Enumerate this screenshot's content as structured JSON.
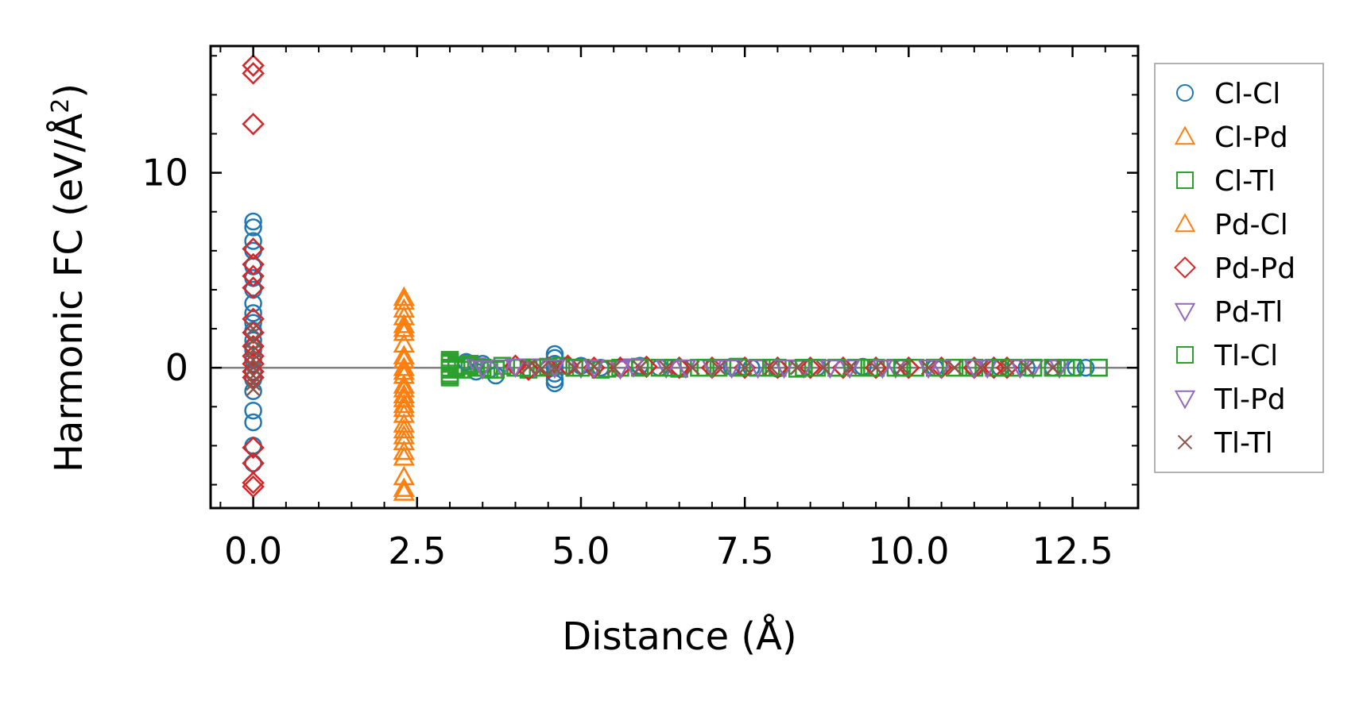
{
  "chart_data": {
    "type": "scatter",
    "title": "",
    "xlabel": "Distance (Å)",
    "ylabel_main": "Harmonic FC (eV/Å",
    "ylabel_sup": "2",
    "ylabel_close": ")",
    "xlim": [
      -0.65,
      13.5
    ],
    "ylim": [
      -7.2,
      16.5
    ],
    "xticks": [
      {
        "value": 0.0,
        "label": "0.0"
      },
      {
        "value": 2.5,
        "label": "2.5"
      },
      {
        "value": 5.0,
        "label": "5.0"
      },
      {
        "value": 7.5,
        "label": "7.5"
      },
      {
        "value": 10.0,
        "label": "10.0"
      },
      {
        "value": 12.5,
        "label": "12.5"
      }
    ],
    "yticks": [
      {
        "value": 0,
        "label": "0"
      },
      {
        "value": 10,
        "label": "10"
      }
    ],
    "x_minor_step": 0.5,
    "y_minor_step": 2,
    "zero_line": true,
    "legend_position": "outside-right",
    "series": [
      {
        "name": "Cl-Cl",
        "marker": "circle",
        "color": "#1f77b4",
        "fill": "none",
        "x": [
          0,
          0,
          0,
          0,
          0,
          0,
          0,
          0,
          0,
          0,
          0,
          0,
          0,
          0,
          0,
          0,
          0,
          0,
          0,
          0,
          0,
          0,
          3.25,
          3.3,
          3.4,
          3.5,
          3.6,
          3.7,
          4.6,
          4.6,
          4.6,
          4.6,
          4.6,
          4.6,
          4.6,
          5.0,
          5.3,
          5.9,
          6.2,
          6.5,
          7.3,
          7.6,
          8.0,
          8.6,
          9.3,
          9.9,
          10.4,
          11.0,
          11.4,
          11.8,
          12.2,
          12.55,
          12.7
        ],
        "y": [
          7.5,
          7.2,
          6.5,
          6.0,
          5.2,
          4.6,
          4.0,
          3.3,
          2.8,
          2.3,
          1.9,
          1.4,
          0.9,
          0.4,
          -0.2,
          -0.6,
          -2.2,
          -2.8,
          -4.0,
          -4.9,
          -1.2,
          1.1,
          0.3,
          0.1,
          -0.2,
          0.2,
          -0.1,
          -0.4,
          0.7,
          0.5,
          0.2,
          0,
          -0.3,
          -0.6,
          -0.8,
          0.1,
          0,
          0.1,
          0,
          0,
          0.05,
          0,
          -0.05,
          0,
          0.05,
          0,
          0,
          0,
          0,
          0,
          0,
          0,
          0
        ]
      },
      {
        "name": "Cl-Pd",
        "marker": "triangle-up",
        "color": "#ff7f0e",
        "fill": "none",
        "x": [
          2.3,
          2.3,
          2.3,
          2.3,
          2.3,
          2.3,
          2.3,
          2.3,
          2.3,
          2.3,
          2.3,
          2.3,
          2.3,
          2.3,
          2.3,
          2.3,
          2.3,
          2.3
        ],
        "y": [
          3.4,
          3.0,
          2.2,
          1.8,
          0.4,
          0.0,
          -0.4,
          -1.4,
          -1.9,
          -2.4,
          -3.2,
          -3.8,
          -4.3,
          -5.6,
          -6.2,
          -2.9,
          1.2,
          -0.9
        ]
      },
      {
        "name": "Cl-Tl",
        "marker": "square",
        "color": "#2ca02c",
        "fill": "none",
        "x": [
          3.0,
          3.0,
          3.0,
          3.0,
          3.0,
          3.1,
          3.2,
          3.3,
          3.4,
          3.6,
          3.8,
          4.0,
          4.2,
          4.4,
          4.7,
          5.0,
          5.3,
          5.6,
          5.9,
          6.2,
          6.5,
          6.8,
          7.1,
          7.4,
          7.7,
          8.0,
          8.3,
          8.6,
          8.9,
          9.2,
          9.5,
          9.8,
          10.1,
          10.4,
          10.7,
          11.0,
          11.3,
          11.6,
          11.9,
          12.2,
          12.5,
          12.9
        ],
        "y": [
          0.4,
          0.2,
          0,
          -0.3,
          -0.5,
          0.1,
          -0.1,
          0.2,
          0,
          -0.1,
          0.1,
          0,
          -0.1,
          0,
          0.1,
          0,
          -0.1,
          0,
          0.05,
          0,
          -0.05,
          0,
          0,
          0.05,
          0,
          0,
          -0.05,
          0,
          0,
          0,
          0,
          0,
          0,
          0,
          0,
          0,
          0,
          0,
          0,
          0,
          0,
          0
        ]
      },
      {
        "name": "Pd-Cl",
        "marker": "triangle-up",
        "color": "#ff7f0e",
        "fill": "none",
        "x": [
          2.3,
          2.3,
          2.3,
          2.3,
          2.3,
          2.3,
          2.3,
          2.3,
          2.3,
          2.3,
          2.3
        ],
        "y": [
          3.6,
          2.6,
          2.0,
          0.6,
          -0.2,
          -1.1,
          -1.6,
          -2.1,
          -3.5,
          -4.6,
          -6.4
        ]
      },
      {
        "name": "Pd-Pd",
        "marker": "diamond",
        "color": "#d62728",
        "fill": "none",
        "x": [
          0,
          0,
          0,
          0,
          0,
          0,
          0,
          0,
          0,
          0,
          0,
          0,
          0,
          0,
          0,
          0,
          0,
          0,
          4.0,
          4.2,
          4.5,
          4.8,
          5.2,
          5.6,
          6.0,
          6.5,
          7.0,
          7.5,
          8.0,
          8.5,
          9.0,
          9.5,
          10.0,
          10.5,
          11.0,
          11.3,
          11.5
        ],
        "y": [
          15.5,
          15.1,
          12.5,
          6.1,
          5.3,
          4.7,
          4.1,
          2.5,
          1.8,
          1.1,
          0.6,
          0.2,
          -0.2,
          -0.5,
          -4.1,
          -4.9,
          -5.9,
          -6.1,
          0.1,
          -0.1,
          0,
          0.1,
          0,
          0,
          0.05,
          0,
          0,
          0,
          0,
          0,
          0,
          0,
          0,
          0,
          0,
          0,
          0
        ]
      },
      {
        "name": "Pd-Tl",
        "marker": "triangle-down",
        "color": "#9467bd",
        "fill": "none",
        "x": [
          3.4,
          3.8,
          4.3,
          5.0,
          5.6,
          6.3,
          7.0,
          7.7,
          8.4,
          9.1,
          9.8,
          10.5,
          11.2,
          11.9,
          12.3
        ],
        "y": [
          0.1,
          0,
          0.05,
          0,
          -0.05,
          0,
          0,
          0,
          0,
          0,
          0,
          0,
          0,
          0,
          0
        ]
      },
      {
        "name": "Tl-Cl",
        "marker": "square",
        "color": "#2ca02c",
        "fill": "none",
        "x": [
          3.0,
          3.0,
          3.0,
          3.1,
          3.3,
          3.5,
          3.7,
          4.1,
          4.5,
          4.9,
          5.4,
          5.9,
          6.4,
          6.9,
          7.4,
          7.9,
          8.4,
          8.9,
          9.4,
          9.9,
          10.4,
          10.9,
          11.4,
          11.9,
          12.4,
          12.9
        ],
        "y": [
          0.3,
          -0.1,
          -0.4,
          0,
          0.1,
          0,
          -0.1,
          0,
          0.05,
          0,
          -0.05,
          0,
          0,
          0,
          0,
          0,
          0,
          0,
          0,
          0,
          0,
          0,
          0,
          0,
          0,
          0
        ]
      },
      {
        "name": "Tl-Pd",
        "marker": "triangle-down",
        "color": "#9467bd",
        "fill": "none",
        "x": [
          3.5,
          4.0,
          4.6,
          5.2,
          5.8,
          6.6,
          7.3,
          8.1,
          8.8,
          9.6,
          10.3,
          11.0,
          11.7
        ],
        "y": [
          -0.05,
          0.05,
          0,
          0,
          0.05,
          0,
          0,
          0,
          0,
          0,
          0,
          0,
          0
        ]
      },
      {
        "name": "Tl-Tl",
        "marker": "x",
        "color": "#8c564b",
        "fill": "none",
        "x": [
          0,
          0,
          0,
          0,
          0,
          0,
          0,
          0,
          4.2,
          4.4,
          4.6,
          4.9,
          5.2,
          5.5,
          5.9,
          6.3,
          6.7,
          7.1,
          7.5,
          7.9,
          8.3,
          8.7,
          9.1,
          9.5,
          9.9,
          10.3,
          10.7,
          11.1,
          11.5,
          11.8,
          12.2
        ],
        "y": [
          2.0,
          1.4,
          0.9,
          0.4,
          0,
          -0.4,
          -0.8,
          -1.1,
          0.05,
          -0.05,
          0,
          0,
          0.05,
          0,
          0,
          0,
          0,
          0,
          0,
          0,
          0,
          0,
          0,
          0,
          0,
          0,
          0,
          0,
          0,
          0,
          0
        ]
      }
    ]
  }
}
